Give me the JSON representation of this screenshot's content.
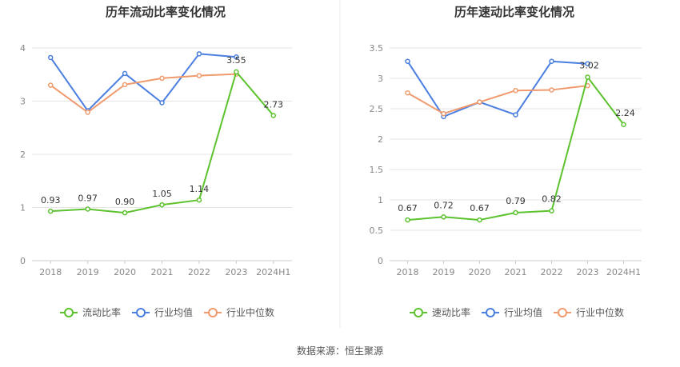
{
  "colors": {
    "main": "#5cc22e",
    "avg": "#4a7ee0",
    "median": "#f09a6d",
    "grid": "#e6e6e6",
    "axis": "#cccccc"
  },
  "source": "数据来源：恒生聚源",
  "chart_data": [
    {
      "type": "line",
      "title": "历年流动比率变化情况",
      "categories": [
        "2018",
        "2019",
        "2020",
        "2021",
        "2022",
        "2023",
        "2024H1"
      ],
      "ylim": [
        0,
        4
      ],
      "yticks": [
        "0",
        "1",
        "2",
        "3",
        "4"
      ],
      "grid": true,
      "legend": "bottom",
      "series": [
        {
          "name": "流动比率",
          "color": "#5cc22e",
          "values": [
            0.93,
            0.97,
            0.9,
            1.05,
            1.14,
            3.55,
            2.73
          ],
          "labels": [
            "0.93",
            "0.97",
            "0.90",
            "1.05",
            "1.14",
            "3.55",
            "2.73"
          ]
        },
        {
          "name": "行业均值",
          "color": "#4a7ee0",
          "values": [
            3.82,
            2.82,
            3.52,
            2.97,
            3.89,
            3.83,
            null
          ]
        },
        {
          "name": "行业中位数",
          "color": "#f09a6d",
          "values": [
            3.3,
            2.79,
            3.31,
            3.43,
            3.48,
            3.51,
            null
          ]
        }
      ]
    },
    {
      "type": "line",
      "title": "历年速动比率变化情况",
      "categories": [
        "2018",
        "2019",
        "2020",
        "2021",
        "2022",
        "2023",
        "2024H1"
      ],
      "ylim": [
        0,
        3.5
      ],
      "yticks": [
        "0",
        "0.5",
        "1",
        "1.5",
        "2",
        "2.5",
        "3",
        "3.5"
      ],
      "grid": true,
      "legend": "bottom",
      "series": [
        {
          "name": "速动比率",
          "color": "#5cc22e",
          "values": [
            0.67,
            0.72,
            0.67,
            0.79,
            0.82,
            3.02,
            2.24
          ],
          "labels": [
            "0.67",
            "0.72",
            "0.67",
            "0.79",
            "0.82",
            "3.02",
            "2.24"
          ]
        },
        {
          "name": "行业均值",
          "color": "#4a7ee0",
          "values": [
            3.28,
            2.37,
            2.61,
            2.4,
            3.28,
            3.24,
            null
          ]
        },
        {
          "name": "行业中位数",
          "color": "#f09a6d",
          "values": [
            2.76,
            2.42,
            2.61,
            2.8,
            2.81,
            2.88,
            null
          ]
        }
      ]
    }
  ]
}
